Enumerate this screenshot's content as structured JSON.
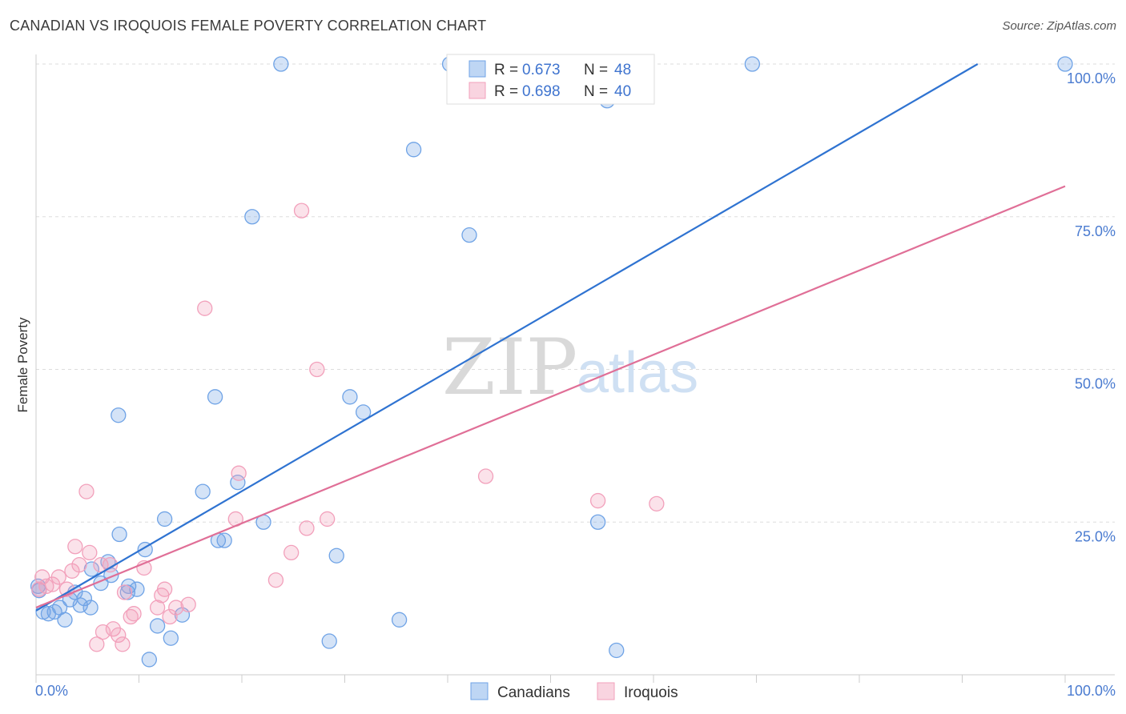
{
  "title": "CANADIAN VS IROQUOIS FEMALE POVERTY CORRELATION CHART",
  "source": "Source: ZipAtlas.com",
  "colors": {
    "canadians": "#6fa3e6",
    "iroquois": "#f2a0bb",
    "canadians_line": "#2f73d1",
    "iroquois_line": "#e06f97",
    "grid": "#dddddd"
  },
  "chart_data": {
    "type": "scatter",
    "xlabel": "",
    "ylabel": "Female Poverty",
    "xlim": [
      0,
      100
    ],
    "ylim": [
      0,
      100
    ],
    "x_tick_labels": [
      "0.0%",
      "100.0%"
    ],
    "y_ticks": [
      25,
      50,
      75,
      100
    ],
    "y_tick_labels": [
      "25.0%",
      "50.0%",
      "75.0%",
      "100.0%"
    ],
    "grid": "dashed horizontal",
    "legend": {
      "placement": "top-center",
      "entries": [
        {
          "r_label": "R =",
          "r_value": "0.673",
          "n_label": "N =",
          "n_value": "48"
        },
        {
          "r_label": "R =",
          "r_value": "0.698",
          "n_label": "N =",
          "n_value": "40"
        }
      ]
    },
    "bottom_legend": [
      "Canadians",
      "Iroquois"
    ],
    "watermark": {
      "zip": "ZIP",
      "atlas": "atlas"
    },
    "series": [
      {
        "name": "Canadians",
        "points": [
          [
            0.3,
            13.8
          ],
          [
            0.7,
            10.3
          ],
          [
            1.2,
            10.0
          ],
          [
            1.8,
            10.3
          ],
          [
            2.3,
            11.0
          ],
          [
            2.8,
            9.0
          ],
          [
            3.3,
            12.3
          ],
          [
            3.8,
            13.5
          ],
          [
            4.3,
            11.4
          ],
          [
            4.7,
            12.5
          ],
          [
            5.3,
            11.0
          ],
          [
            5.4,
            17.3
          ],
          [
            6.3,
            15.0
          ],
          [
            7.0,
            18.5
          ],
          [
            7.3,
            16.3
          ],
          [
            8.1,
            23.0
          ],
          [
            8.9,
            13.5
          ],
          [
            9.0,
            14.5
          ],
          [
            9.8,
            14.0
          ],
          [
            10.6,
            20.5
          ],
          [
            11.0,
            2.5
          ],
          [
            11.8,
            8.0
          ],
          [
            12.5,
            25.5
          ],
          [
            13.1,
            6.0
          ],
          [
            14.2,
            9.8
          ],
          [
            16.2,
            30.0
          ],
          [
            17.4,
            45.5
          ],
          [
            17.7,
            22.0
          ],
          [
            18.3,
            22.0
          ],
          [
            19.6,
            31.5
          ],
          [
            21.0,
            75.0
          ],
          [
            22.1,
            25.0
          ],
          [
            8.0,
            42.5
          ],
          [
            23.8,
            100.0
          ],
          [
            28.5,
            5.5
          ],
          [
            29.2,
            19.5
          ],
          [
            30.5,
            45.5
          ],
          [
            31.8,
            43.0
          ],
          [
            35.3,
            9.0
          ],
          [
            36.7,
            86.0
          ],
          [
            40.2,
            100.0
          ],
          [
            42.1,
            72.0
          ],
          [
            54.6,
            25.0
          ],
          [
            55.5,
            94.0
          ],
          [
            56.4,
            4.0
          ],
          [
            69.6,
            100.0
          ],
          [
            100.0,
            100.0
          ],
          [
            0.2,
            14.5
          ]
        ]
      },
      {
        "name": "Iroquois",
        "points": [
          [
            0.3,
            14.0
          ],
          [
            0.6,
            16.0
          ],
          [
            1.0,
            14.5
          ],
          [
            1.6,
            14.8
          ],
          [
            2.2,
            16.0
          ],
          [
            3.0,
            14.0
          ],
          [
            3.5,
            17.0
          ],
          [
            3.8,
            21.0
          ],
          [
            4.2,
            18.0
          ],
          [
            4.9,
            30.0
          ],
          [
            5.2,
            20.0
          ],
          [
            5.9,
            5.0
          ],
          [
            6.3,
            18.0
          ],
          [
            6.5,
            7.0
          ],
          [
            7.2,
            18.0
          ],
          [
            7.5,
            7.5
          ],
          [
            8.0,
            6.5
          ],
          [
            8.4,
            5.0
          ],
          [
            8.6,
            13.5
          ],
          [
            9.2,
            9.5
          ],
          [
            9.5,
            10.0
          ],
          [
            10.5,
            17.5
          ],
          [
            11.8,
            11.0
          ],
          [
            12.2,
            13.0
          ],
          [
            12.5,
            14.0
          ],
          [
            13.0,
            9.5
          ],
          [
            13.6,
            11.0
          ],
          [
            14.8,
            11.5
          ],
          [
            16.4,
            60.0
          ],
          [
            19.4,
            25.5
          ],
          [
            19.7,
            33.0
          ],
          [
            23.3,
            15.5
          ],
          [
            24.8,
            20.0
          ],
          [
            25.8,
            76.0
          ],
          [
            26.3,
            24.0
          ],
          [
            27.3,
            50.0
          ],
          [
            28.3,
            25.5
          ],
          [
            43.7,
            32.5
          ],
          [
            54.6,
            28.5
          ],
          [
            60.3,
            28.0
          ]
        ]
      }
    ],
    "trend_lines": [
      {
        "name": "Canadians",
        "x": [
          0,
          91.5
        ],
        "y": [
          10.5,
          100
        ]
      },
      {
        "name": "Iroquois",
        "x": [
          0,
          100
        ],
        "y": [
          11.0,
          80.0
        ]
      }
    ]
  }
}
